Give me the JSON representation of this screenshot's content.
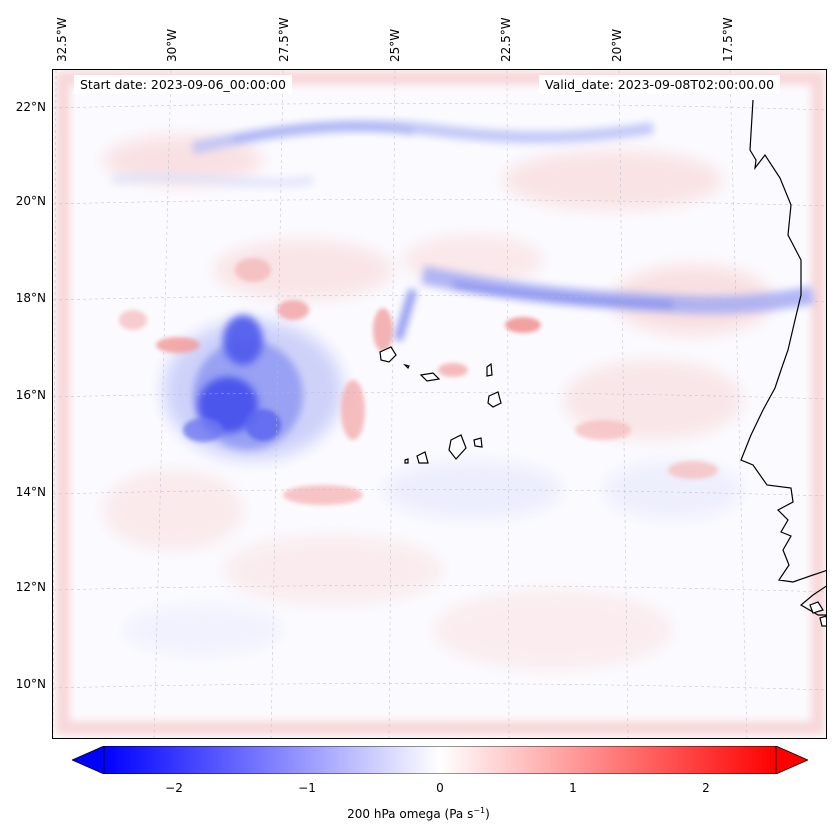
{
  "header": {
    "start_date": "Start date: 2023-09-06_00:00:00",
    "valid_date": "Valid_date: 2023-09-08T02:00:00.00"
  },
  "longitude_labels": [
    "32.5°W",
    "30°W",
    "27.5°W",
    "25°W",
    "22.5°W",
    "20°W",
    "17.5°W"
  ],
  "latitude_labels": [
    "22°N",
    "20°N",
    "18°N",
    "16°N",
    "14°N",
    "12°N",
    "10°N"
  ],
  "colorbar": {
    "label_main": "200 hPa omega (Pa s",
    "label_exp": "−1",
    "label_close": ")",
    "ticks": [
      "−2",
      "−1",
      "0",
      "1",
      "2"
    ],
    "vmin": -2.5,
    "vmax": 2.5,
    "low_color": "#0000ff",
    "mid_color": "#ffffff",
    "high_color": "#ff0000"
  },
  "field_features": [
    {
      "name": "blue-band-north",
      "omega": -0.6
    },
    {
      "name": "blue-band-18N",
      "omega": -0.9
    },
    {
      "name": "blue-core-west",
      "omega": -2.0
    },
    {
      "name": "red-patches",
      "omega": 0.7
    },
    {
      "name": "pink-boundary-frame",
      "omega": 0.3
    }
  ]
}
